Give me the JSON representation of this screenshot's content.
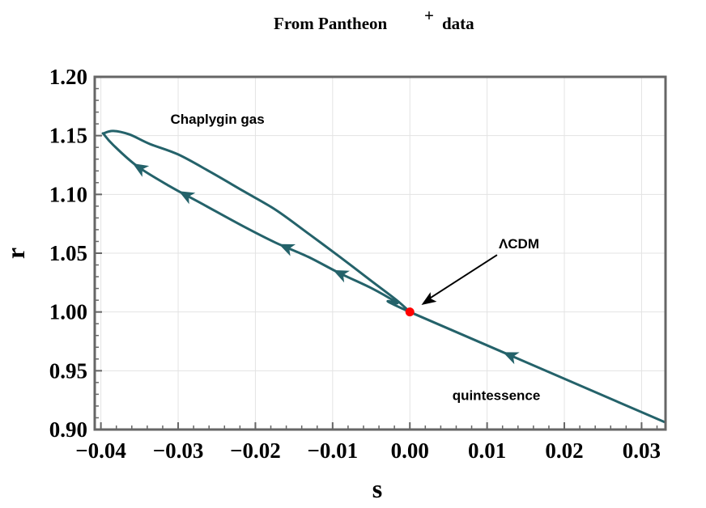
{
  "chart_data": {
    "type": "line",
    "title": "From Pantheon",
    "title_superscript": "+",
    "title_suffix": "data",
    "xlabel": "s",
    "ylabel": "r",
    "xlim": [
      -0.0408,
      0.0331
    ],
    "ylim": [
      0.9,
      1.2
    ],
    "grid": true,
    "xticks": [
      "-0.04",
      "-0.03",
      "-0.02",
      "-0.01",
      "0.00",
      "0.01",
      "0.02",
      "0.03"
    ],
    "xtick_values": [
      -0.04,
      -0.03,
      -0.02,
      -0.01,
      0.0,
      0.01,
      0.02,
      0.03
    ],
    "yticks": [
      "0.90",
      "0.95",
      "1.00",
      "1.05",
      "1.10",
      "1.15",
      "1.20"
    ],
    "ytick_values": [
      0.9,
      0.95,
      1.0,
      1.05,
      1.1,
      1.15,
      1.2
    ],
    "line_color": "#24626a",
    "series": [
      {
        "points": [
          [
            0.0331,
            0.906
          ],
          [
            0.0,
            1.0
          ],
          [
            -0.0017,
            1.008
          ],
          [
            -0.0049,
            1.02
          ],
          [
            -0.0091,
            1.033
          ],
          [
            -0.0132,
            1.047
          ],
          [
            -0.0174,
            1.059
          ],
          [
            -0.0216,
            1.073
          ],
          [
            -0.0269,
            1.092
          ],
          [
            -0.0311,
            1.107
          ],
          [
            -0.0353,
            1.124
          ],
          [
            -0.0384,
            1.142
          ],
          [
            -0.0396,
            1.151
          ],
          [
            -0.0396,
            1.152
          ],
          [
            -0.0384,
            1.154
          ],
          [
            -0.0363,
            1.151
          ],
          [
            -0.0337,
            1.143
          ],
          [
            -0.03,
            1.134
          ],
          [
            -0.0258,
            1.119
          ],
          [
            -0.0216,
            1.103
          ],
          [
            -0.0174,
            1.087
          ],
          [
            -0.0132,
            1.067
          ],
          [
            -0.0091,
            1.047
          ],
          [
            -0.0049,
            1.026
          ],
          [
            -0.0017,
            1.01
          ],
          [
            0.0,
            1.0
          ]
        ],
        "arrows_at_s": [
          0.013,
          -0.009,
          -0.029,
          -0.035,
          -0.016
        ]
      }
    ],
    "point": {
      "s": 0.0,
      "r": 1.0,
      "color": "#ff0000"
    },
    "annotations": [
      {
        "text": "Chaplygin gas",
        "s": -0.031,
        "r": 1.16
      },
      {
        "text": "ΛCDM",
        "s": 0.0115,
        "r": 1.054,
        "arrow_to": [
          0.0015,
          1.006
        ]
      },
      {
        "text": "quintessence",
        "s": 0.0055,
        "r": 0.925
      }
    ]
  }
}
